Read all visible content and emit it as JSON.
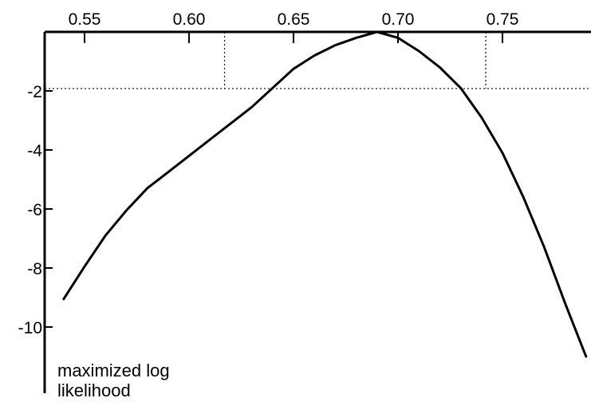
{
  "chart_data": {
    "type": "line",
    "title": "",
    "xlabel": "",
    "ylabel": "maximized log likelihood",
    "ylabel_lines": [
      "maximized log",
      "likelihood"
    ],
    "x_axis_position": "top",
    "xlim": [
      0.53,
      0.79
    ],
    "ylim": [
      -12,
      0
    ],
    "xticks": [
      0.55,
      0.6,
      0.65,
      0.7,
      0.75
    ],
    "xtick_labels": [
      "0.55",
      "0.60",
      "0.65",
      "0.70",
      "0.75"
    ],
    "yticks": [
      -2,
      -4,
      -6,
      -8,
      -10
    ],
    "ytick_labels": [
      "-2",
      "-4",
      "-6",
      "-8",
      "-10"
    ],
    "grid": false,
    "legend": "none",
    "series": [
      {
        "color": "#000000",
        "x": [
          0.54,
          0.55,
          0.56,
          0.57,
          0.58,
          0.59,
          0.6,
          0.61,
          0.62,
          0.63,
          0.64,
          0.65,
          0.66,
          0.67,
          0.68,
          0.69,
          0.7,
          0.71,
          0.72,
          0.73,
          0.74,
          0.75,
          0.76,
          0.77,
          0.78,
          0.79
        ],
        "y": [
          -9.05,
          -7.95,
          -6.9,
          -6.05,
          -5.3,
          -4.75,
          -4.2,
          -3.65,
          -3.1,
          -2.55,
          -1.9,
          -1.25,
          -0.8,
          -0.45,
          -0.2,
          0.0,
          -0.2,
          -0.65,
          -1.2,
          -1.9,
          -2.9,
          -4.1,
          -5.6,
          -7.3,
          -9.2,
          -11.0
        ]
      }
    ],
    "annotations": {
      "reference_lines": [
        {
          "orientation": "horizontal",
          "y": -1.92,
          "style": "dotted"
        },
        {
          "orientation": "vertical",
          "x": 0.617,
          "style": "dotted"
        },
        {
          "orientation": "vertical",
          "x": 0.742,
          "style": "dotted"
        }
      ]
    }
  }
}
